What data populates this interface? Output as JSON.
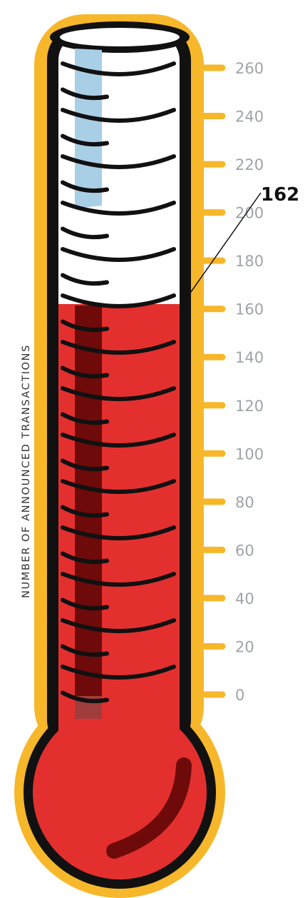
{
  "chart_data": {
    "type": "thermometer",
    "value": 162,
    "value_label": "162",
    "ylabel": "NUMBER OF ANNOUNCED TRANSACTIONS",
    "ylim": [
      0,
      260
    ],
    "ticks": [
      0,
      20,
      40,
      60,
      80,
      100,
      120,
      140,
      160,
      180,
      200,
      220,
      240,
      260
    ],
    "tick_labels": [
      "0",
      "20",
      "40",
      "60",
      "80",
      "100",
      "120",
      "140",
      "160",
      "180",
      "200",
      "220",
      "240",
      "260"
    ]
  },
  "colors": {
    "outline": "#f7b72b",
    "border": "#111111",
    "fill": "#e3302f",
    "fill_shadow": "#6e0a0a",
    "empty": "#ffffff",
    "glass_highlight": "#a9cfe7",
    "tick_label": "#a0a3a6",
    "callout": "#111111"
  }
}
